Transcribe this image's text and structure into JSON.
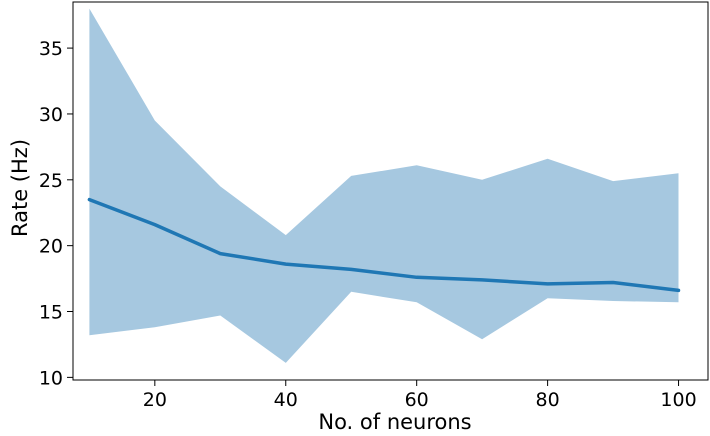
{
  "chart_data": {
    "type": "line",
    "title": "",
    "xlabel": "No. of neurons",
    "ylabel": "Rate (Hz)",
    "xlim": [
      7.5,
      104.5
    ],
    "ylim": [
      9.8,
      38.5
    ],
    "xticks": [
      20,
      40,
      60,
      80,
      100
    ],
    "yticks": [
      10,
      15,
      20,
      25,
      30,
      35
    ],
    "grid": false,
    "legend": "none",
    "x": [
      10,
      20,
      30,
      40,
      50,
      60,
      70,
      80,
      90,
      100
    ],
    "series": [
      {
        "values": [
          23.5,
          21.6,
          19.4,
          18.6,
          18.2,
          17.6,
          17.4,
          17.1,
          17.2,
          16.6
        ],
        "color": "#1f77b4"
      }
    ],
    "band": {
      "upper": [
        38.0,
        29.5,
        24.5,
        20.8,
        25.3,
        26.1,
        25.0,
        26.6,
        24.9,
        25.5
      ],
      "lower": [
        13.2,
        13.8,
        14.7,
        11.1,
        16.5,
        15.7,
        12.9,
        16.0,
        15.8,
        15.7
      ],
      "color": "#a6c8e0"
    }
  }
}
